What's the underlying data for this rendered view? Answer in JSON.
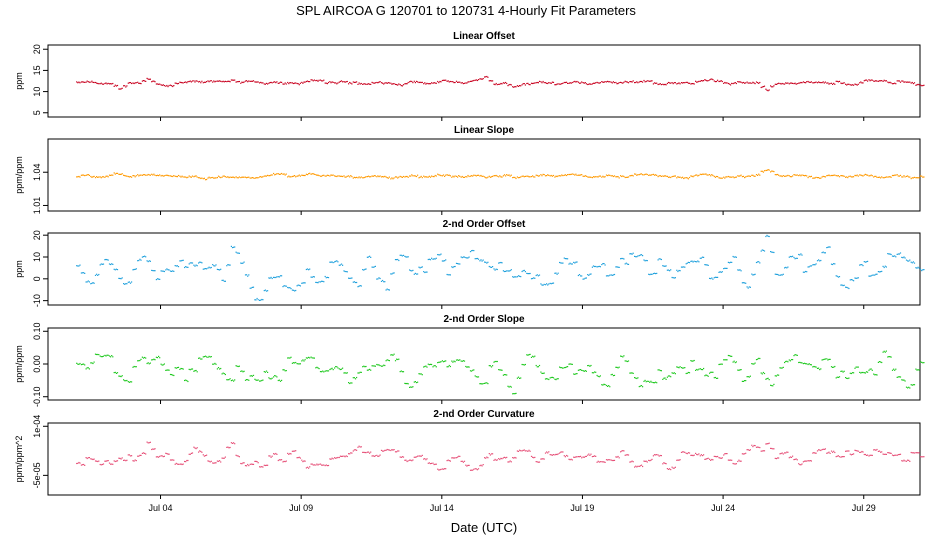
{
  "title": "SPL   AIRCOA G   120701 to 120731   4-Hourly Fit Parameters",
  "xlabel": "Date (UTC)",
  "xaxis": {
    "range": [
      "2012-06-30",
      "2012-07-31"
    ],
    "ticks": [
      {
        "date": "2012-07-04",
        "label": "Jul 04"
      },
      {
        "date": "2012-07-09",
        "label": "Jul 09"
      },
      {
        "date": "2012-07-14",
        "label": "Jul 14"
      },
      {
        "date": "2012-07-19",
        "label": "Jul 19"
      },
      {
        "date": "2012-07-24",
        "label": "Jul 24"
      },
      {
        "date": "2012-07-29",
        "label": "Jul 29"
      }
    ]
  },
  "chart_data": [
    {
      "type": "scatter",
      "title": "Linear Offset",
      "ylabel": "ppm",
      "ylim": [
        4,
        21
      ],
      "yticks": [
        {
          "v": 5,
          "label": "5"
        },
        {
          "v": 10,
          "label": "10"
        },
        {
          "v": 15,
          "label": "15"
        },
        {
          "v": 20,
          "label": "20"
        }
      ],
      "color": "#c8001e",
      "series": [
        {
          "start": "2012-07-01",
          "end": "2012-07-31",
          "base": 12.2,
          "amp": 0.35,
          "spikes": [
            [
              "2012-07-02",
              11.2
            ],
            [
              "2012-07-03",
              13.0
            ],
            [
              "2012-07-06",
              12.9
            ],
            [
              "2012-07-15",
              13.4
            ],
            [
              "2012-07-16",
              11.4
            ],
            [
              "2012-07-25",
              10.7
            ],
            [
              "2012-07-28",
              11.6
            ]
          ]
        }
      ]
    },
    {
      "type": "scatter",
      "title": "Linear Slope",
      "ylabel": "ppm/ppm",
      "ylim": [
        1.005,
        1.07
      ],
      "yticks": [
        {
          "v": 1.01,
          "label": "1.01"
        },
        {
          "v": 1.04,
          "label": "1.04"
        }
      ],
      "color": "#ff9900",
      "series": [
        {
          "start": "2012-07-01",
          "end": "2012-07-31",
          "base": 1.037,
          "amp": 0.0012,
          "spikes": [
            [
              "2012-07-02",
              1.039
            ],
            [
              "2012-07-05",
              1.035
            ],
            [
              "2012-07-16",
              1.035
            ],
            [
              "2012-07-25",
              1.042
            ]
          ]
        }
      ]
    },
    {
      "type": "scatter",
      "title": "2-nd Order Offset",
      "ylabel": "ppm",
      "ylim": [
        -12,
        21
      ],
      "yticks": [
        {
          "v": -10,
          "label": "-10"
        },
        {
          "v": 0,
          "label": "0"
        },
        {
          "v": 10,
          "label": "10"
        },
        {
          "v": 20,
          "label": "20"
        }
      ],
      "color": "#1ea0dc",
      "series": [
        {
          "start": "2012-07-01",
          "end": "2012-07-31",
          "base": 4,
          "amp": 5.5,
          "spikes": [
            [
              "2012-07-06",
              16
            ],
            [
              "2012-07-07",
              -4
            ],
            [
              "2012-07-16",
              12
            ],
            [
              "2012-07-16",
              -4
            ],
            [
              "2012-07-25",
              13
            ]
          ]
        }
      ]
    },
    {
      "type": "scatter",
      "title": "2-nd Order Slope",
      "ylabel": "ppm/ppm",
      "ylim": [
        -0.11,
        0.11
      ],
      "yticks": [
        {
          "v": -0.1,
          "label": "-0.10"
        },
        {
          "v": 0,
          "label": "0.00"
        },
        {
          "v": 0.1,
          "label": "0.10"
        }
      ],
      "color": "#1ec81e",
      "series": [
        {
          "start": "2012-07-01",
          "end": "2012-07-31",
          "base": -0.02,
          "amp": 0.035,
          "spikes": [
            [
              "2012-07-06",
              -0.08
            ],
            [
              "2012-07-08",
              0.025
            ],
            [
              "2012-07-16",
              -0.07
            ],
            [
              "2012-07-25",
              -0.06
            ]
          ]
        }
      ]
    },
    {
      "type": "scatter",
      "title": "2-nd Order Curvature",
      "ylabel": "ppm/ppm^2",
      "ylim": [
        -0.00011,
        0.00011
      ],
      "yticks": [
        {
          "v": -5e-05,
          "label": "-5e-05"
        },
        {
          "v": 0.0001,
          "label": "1e-04"
        }
      ],
      "color": "#e65078",
      "series": [
        {
          "start": "2012-07-01",
          "end": "2012-07-31",
          "base": 5e-06,
          "amp": 2e-05,
          "spikes": [
            [
              "2012-07-03",
              6e-05
            ],
            [
              "2012-07-06",
              6e-05
            ],
            [
              "2012-07-07",
              -4e-05
            ],
            [
              "2012-07-25",
              5e-05
            ]
          ]
        }
      ]
    }
  ],
  "colors": {
    "frame": "#000000",
    "background": "#ffffff"
  }
}
